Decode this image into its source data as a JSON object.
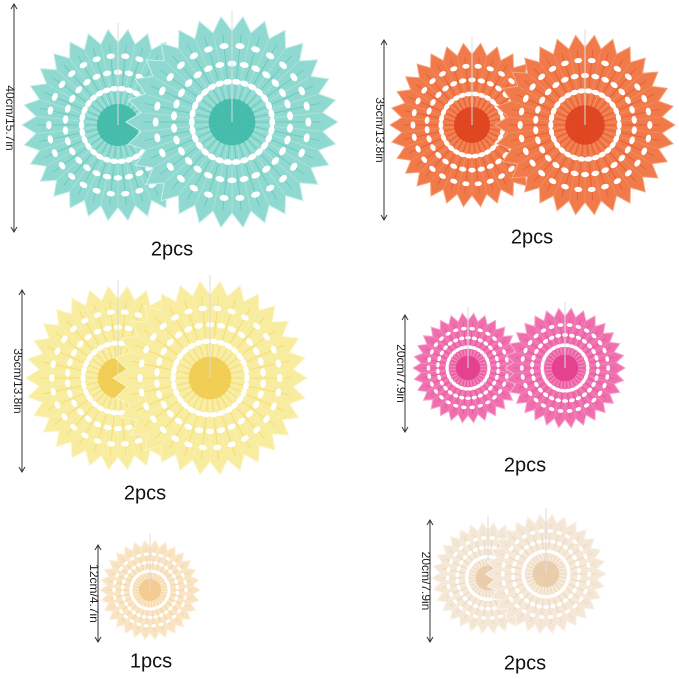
{
  "items": [
    {
      "size": "40cm/15.7in",
      "quantity": "2pcs"
    },
    {
      "size": "35cm/13.8in",
      "quantity": "2pcs"
    },
    {
      "size": "35cm/13.8in",
      "quantity": "2pcs"
    },
    {
      "size": "20cm/7.9in",
      "quantity": "2pcs"
    },
    {
      "size": "12cm/4.7in",
      "quantity": "1pcs"
    },
    {
      "size": "20cm/7.9in",
      "quantity": "2pcs"
    }
  ]
}
